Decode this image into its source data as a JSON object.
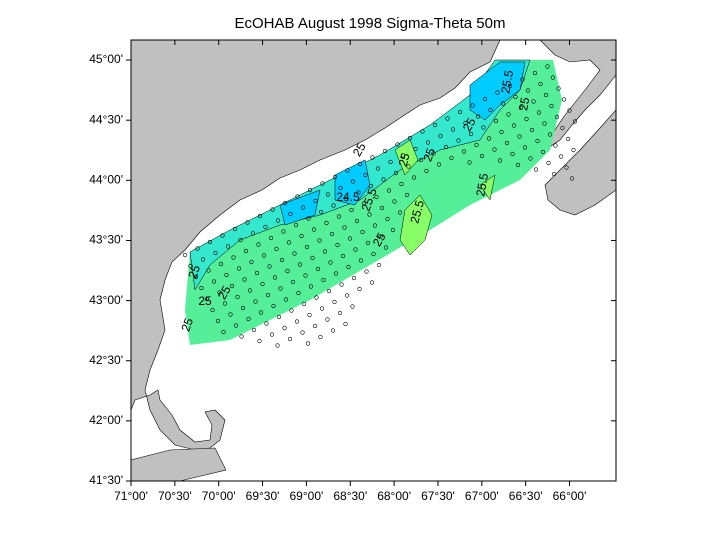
{
  "map": {
    "title": "EcOHAB   August 1998  Sigma-Theta   50m",
    "xlim": [
      -71,
      -65.47
    ],
    "ylim": [
      41.5,
      45.1667
    ],
    "xticks": [
      {
        "value": -71,
        "label": "71°00'"
      },
      {
        "value": -70.5,
        "label": "70°30'"
      },
      {
        "value": -70,
        "label": "70°00'"
      },
      {
        "value": -69.5,
        "label": "69°30'"
      },
      {
        "value": -69,
        "label": "69°00'"
      },
      {
        "value": -68.5,
        "label": "68°30'"
      },
      {
        "value": -68,
        "label": "68°00'"
      },
      {
        "value": -67.5,
        "label": "67°30'"
      },
      {
        "value": -67,
        "label": "67°00'"
      },
      {
        "value": -66.5,
        "label": "66°30'"
      },
      {
        "value": -66,
        "label": "66°00'"
      }
    ],
    "yticks": [
      {
        "value": 45,
        "label": "45°00'"
      },
      {
        "value": 44.5,
        "label": "44°30'"
      },
      {
        "value": 44,
        "label": "44°00'"
      },
      {
        "value": 43.5,
        "label": "43°30'"
      },
      {
        "value": 43,
        "label": "43°00'"
      },
      {
        "value": 42.5,
        "label": "42°30'"
      },
      {
        "value": 42,
        "label": "42°00'"
      },
      {
        "value": 41.5,
        "label": "41°30'"
      }
    ],
    "contour_labels": [
      "25",
      "25",
      "25",
      "25",
      "24.5",
      "25",
      "25",
      "25.5",
      "25",
      "25.5",
      "25.5",
      "25",
      "25.5",
      "25",
      "25"
    ]
  }
}
